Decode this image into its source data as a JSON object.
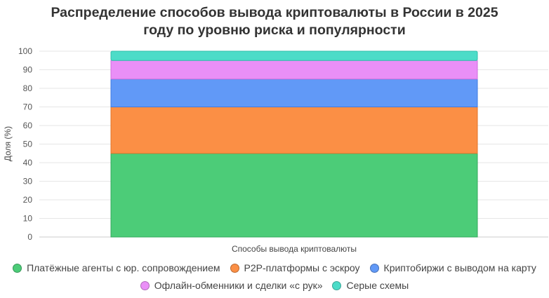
{
  "chart_data": {
    "type": "bar",
    "stacked": true,
    "title_lines": [
      "Распределение способов вывода криптовалюты в России в 2025",
      "году по уровню риска и популярности"
    ],
    "xlabel": "Способы вывода криптовалюты",
    "ylabel": "Доля (%)",
    "ylim": [
      0,
      100
    ],
    "yticks": [
      "0",
      "10",
      "20",
      "30",
      "40",
      "50",
      "60",
      "70",
      "80",
      "90",
      "100"
    ],
    "grid": true,
    "legend_position": "bottom",
    "categories": [
      ""
    ],
    "series": [
      {
        "name": "Платёжные агенты с юр. сопровождением",
        "values": [
          45
        ],
        "color": "#4ccc78",
        "border": "#34a85c"
      },
      {
        "name": "P2P-платформы с эскроу",
        "values": [
          25
        ],
        "color": "#fb8f45",
        "border": "#e0762c"
      },
      {
        "name": "Криптобиржи с выводом на карту",
        "values": [
          15
        ],
        "color": "#6199f7",
        "border": "#3f7ae0"
      },
      {
        "name": "Офлайн-обменники и сделки «с рук»",
        "values": [
          10
        ],
        "color": "#ea8ff7",
        "border": "#cf6fdc"
      },
      {
        "name": "Серые схемы",
        "values": [
          5
        ],
        "color": "#4cdcc8",
        "border": "#2fbfab"
      }
    ]
  }
}
